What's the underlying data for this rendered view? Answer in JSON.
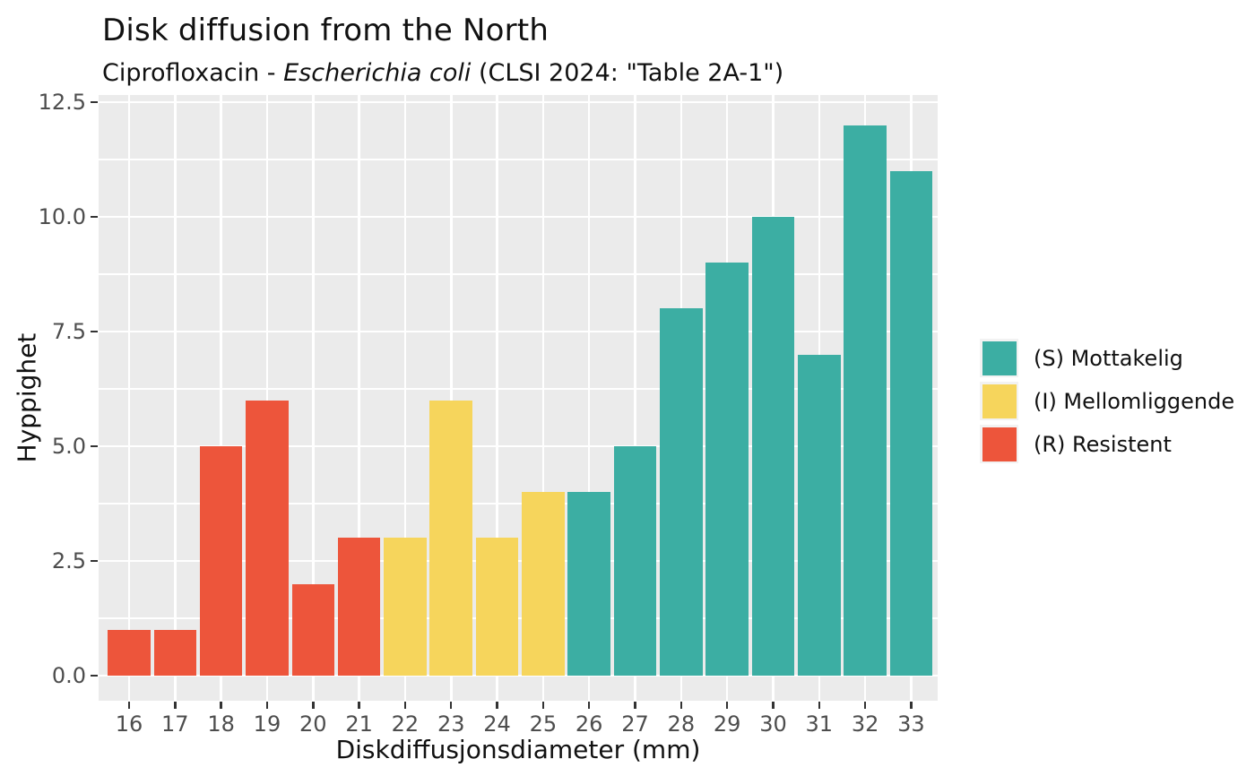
{
  "chart_data": {
    "type": "bar",
    "title": "Disk diffusion from the North",
    "subtitle": {
      "prefix": "Ciprofloxacin - ",
      "italic": "Escherichia coli",
      "suffix": " (CLSI 2024: \"Table 2A-1\")"
    },
    "xlabel": "Diskdiffusjonsdiameter (mm)",
    "ylabel": "Hyppighet",
    "categories": [
      "16",
      "17",
      "18",
      "19",
      "20",
      "21",
      "22",
      "23",
      "24",
      "25",
      "26",
      "27",
      "28",
      "29",
      "30",
      "31",
      "32",
      "33"
    ],
    "values": [
      1,
      1,
      5,
      6,
      2,
      3,
      3,
      6,
      3,
      4,
      4,
      5,
      8,
      9,
      10,
      7,
      12,
      11
    ],
    "groups": [
      "R",
      "R",
      "R",
      "R",
      "R",
      "R",
      "I",
      "I",
      "I",
      "I",
      "S",
      "S",
      "S",
      "S",
      "S",
      "S",
      "S",
      "S"
    ],
    "group_colors": {
      "S": "#3CAEA3",
      "I": "#F6D55C",
      "R": "#ED553B"
    },
    "y_ticks": [
      {
        "v": 0,
        "label": "0.0"
      },
      {
        "v": 2.5,
        "label": "2.5"
      },
      {
        "v": 5,
        "label": "5.0"
      },
      {
        "v": 7.5,
        "label": "7.5"
      },
      {
        "v": 10,
        "label": "10.0"
      },
      {
        "v": 12.5,
        "label": "12.5"
      }
    ],
    "y_minor": [
      1.25,
      3.75,
      6.25,
      8.75,
      11.25
    ],
    "ylim": [
      -0.55,
      12.65
    ],
    "legend": [
      {
        "key": "S",
        "label": "(S) Mottakelig",
        "color": "#3CAEA3"
      },
      {
        "key": "I",
        "label": "(I) Mellomliggende",
        "color": "#F6D55C"
      },
      {
        "key": "R",
        "label": "(R) Resistent",
        "color": "#ED553B"
      }
    ],
    "panel_bg": "#EBEBEB",
    "grid_color": "#FFFFFF",
    "tick_color": "#333333",
    "tick_label_color": "#4D4D4D"
  }
}
